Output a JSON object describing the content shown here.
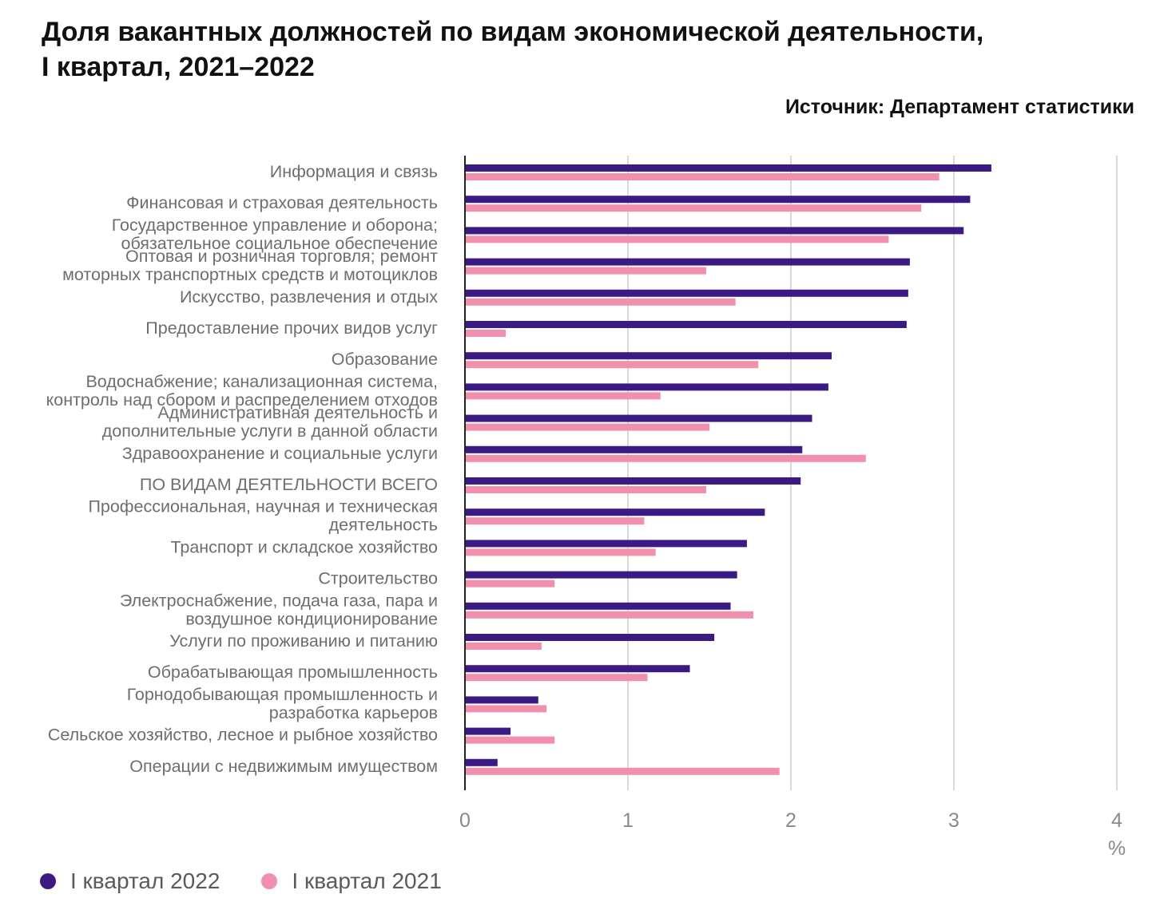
{
  "title_lines": [
    "Доля вакантных должностей по видам экономической деятельности,",
    "I квартал, 2021–2022"
  ],
  "source": "Источник: Департамент статистики",
  "colors": {
    "series_2022": "#3b1a84",
    "series_2021": "#f090ac",
    "grid": "#d9d9d9",
    "axis": "#222222"
  },
  "legend": [
    {
      "label": "I квартал 2022",
      "color": "#3b1a84"
    },
    {
      "label": "I квартал 2021",
      "color": "#f090ac"
    }
  ],
  "chart_data": {
    "type": "bar",
    "orientation": "horizontal",
    "categories": [
      [
        "Информация и связь"
      ],
      [
        "Финансовая и страховая деятельность"
      ],
      [
        "Государственное управление и оборона;",
        "обязательное социальное обеспечение"
      ],
      [
        "Оптовая и розничная торговля; ремонт",
        "моторных транспортных средств и мотоциклов"
      ],
      [
        "Искусство, развлечения и отдых"
      ],
      [
        "Предоставление прочих видов услуг"
      ],
      [
        "Образование"
      ],
      [
        "Водоснабжение; канализационная система,",
        "контроль над сбором и распределением отходов"
      ],
      [
        "Административная деятельность и",
        "дополнительные услуги в данной области"
      ],
      [
        "Здравоохранение и социальные услуги"
      ],
      [
        "ПО ВИДАМ ДЕЯТЕЛЬНОСТИ ВСЕГО"
      ],
      [
        "Профессиональная, научная и техническая",
        "деятельность"
      ],
      [
        "Транспорт и складское хозяйство"
      ],
      [
        "Строительство"
      ],
      [
        "Электроснабжение, подача газа, пара и",
        "воздушное кондиционирование"
      ],
      [
        "Услуги по проживанию и питанию"
      ],
      [
        "Обрабатывающая промышленность"
      ],
      [
        "Горнодобывающая промышленность и",
        "разработка карьеров"
      ],
      [
        "Сельское хозяйство, лесное и рыбное хозяйство"
      ],
      [
        "Операции с недвижимым имуществом"
      ]
    ],
    "series": [
      {
        "name": "I квартал 2022",
        "color": "#3b1a84",
        "values": [
          3.23,
          3.1,
          3.06,
          2.73,
          2.72,
          2.71,
          2.25,
          2.23,
          2.13,
          2.07,
          2.06,
          1.84,
          1.73,
          1.67,
          1.63,
          1.53,
          1.38,
          0.45,
          0.28,
          0.2
        ]
      },
      {
        "name": "I квартал 2021",
        "color": "#f090ac",
        "values": [
          2.91,
          2.8,
          2.6,
          1.48,
          1.66,
          0.25,
          1.8,
          1.2,
          1.5,
          2.46,
          1.48,
          1.1,
          1.17,
          0.55,
          1.77,
          0.47,
          1.12,
          0.5,
          0.55,
          1.93
        ]
      }
    ],
    "xlim": [
      0,
      4
    ],
    "ticks": [
      "0",
      "1",
      "2",
      "3",
      "4"
    ],
    "xlabel": "%",
    "grid": true,
    "legend_position": "bottom-left"
  }
}
